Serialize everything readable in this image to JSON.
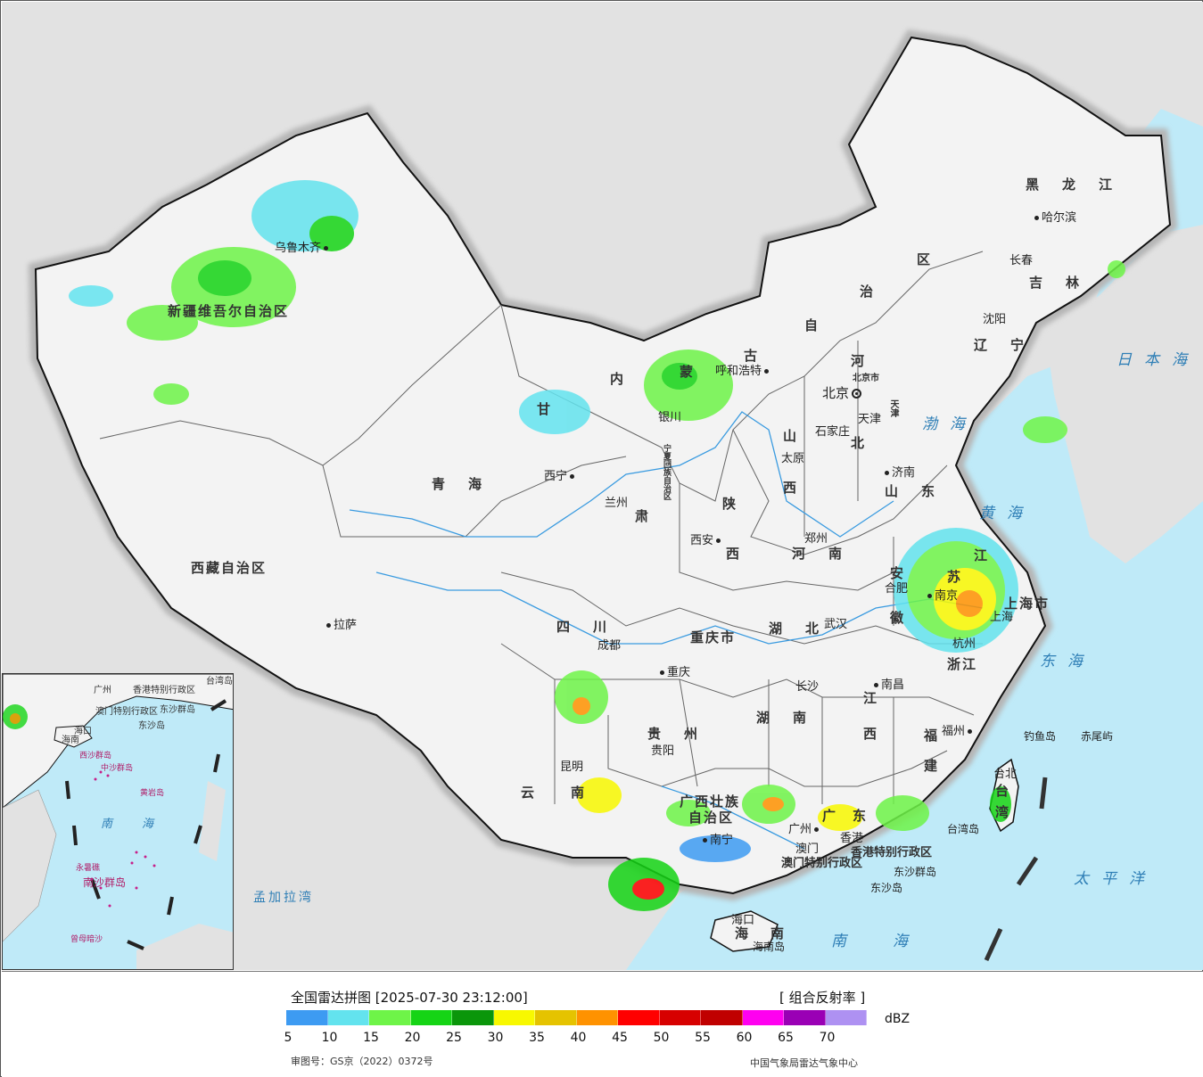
{
  "map": {
    "provinces": [
      {
        "name": "新疆维吾尔自治区",
        "cls": "province"
      },
      {
        "name": "西藏自治区",
        "cls": "province"
      },
      {
        "name": "青海",
        "cls": "province province-wide"
      },
      {
        "name": "甘",
        "cls": "province"
      },
      {
        "name": "肃",
        "cls": "province"
      },
      {
        "name": "内",
        "cls": "province"
      },
      {
        "name": "蒙",
        "cls": "province"
      },
      {
        "name": "古",
        "cls": "province"
      },
      {
        "name": "自",
        "cls": "province"
      },
      {
        "name": "治",
        "cls": "province"
      },
      {
        "name": "区",
        "cls": "province"
      },
      {
        "name": "黑龙江",
        "cls": "province province-wide"
      },
      {
        "name": "吉林",
        "cls": "province province-wide"
      },
      {
        "name": "辽宁",
        "cls": "province province-wide"
      },
      {
        "name": "河",
        "cls": "province"
      },
      {
        "name": "北",
        "cls": "province"
      },
      {
        "name": "山",
        "cls": "province"
      },
      {
        "name": "西",
        "cls": "province"
      },
      {
        "name": "山东",
        "cls": "province province-wide"
      },
      {
        "name": "陕",
        "cls": "province"
      },
      {
        "name": "西",
        "cls": "province"
      },
      {
        "name": "河南",
        "cls": "province province-wide"
      },
      {
        "name": "四川",
        "cls": "province province-wide"
      },
      {
        "name": "重庆市",
        "cls": "province"
      },
      {
        "name": "湖北",
        "cls": "province province-wide"
      },
      {
        "name": "安",
        "cls": "province"
      },
      {
        "name": "徽",
        "cls": "province"
      },
      {
        "name": "江",
        "cls": "province"
      },
      {
        "name": "苏",
        "cls": "province"
      },
      {
        "name": "上海市",
        "cls": "province"
      },
      {
        "name": "浙江",
        "cls": "province"
      },
      {
        "name": "湖南",
        "cls": "province province-wide"
      },
      {
        "name": "江",
        "cls": "province"
      },
      {
        "name": "西",
        "cls": "province"
      },
      {
        "name": "福",
        "cls": "province"
      },
      {
        "name": "建",
        "cls": "province"
      },
      {
        "name": "贵州",
        "cls": "province province-wide"
      },
      {
        "name": "云",
        "cls": "province"
      },
      {
        "name": "南",
        "cls": "province"
      },
      {
        "name": "广西壮族",
        "cls": "province"
      },
      {
        "name": "自治区",
        "cls": "province"
      },
      {
        "name": "广",
        "cls": "province"
      },
      {
        "name": "东",
        "cls": "province"
      },
      {
        "name": "海",
        "cls": "province"
      },
      {
        "name": "南",
        "cls": "province"
      },
      {
        "name": "台",
        "cls": "province"
      },
      {
        "name": "湾",
        "cls": "province"
      },
      {
        "name": "宁夏回族自治区",
        "cls": "province"
      },
      {
        "name": "天津",
        "cls": "province"
      },
      {
        "name": "北京市",
        "cls": "province"
      },
      {
        "name": "香港特别行政区",
        "cls": "province"
      },
      {
        "name": "澳门特别行政区",
        "cls": "province"
      }
    ],
    "cities": [
      {
        "name": "乌鲁木齐"
      },
      {
        "name": "拉萨"
      },
      {
        "name": "西宁"
      },
      {
        "name": "兰州"
      },
      {
        "name": "银川"
      },
      {
        "name": "呼和浩特"
      },
      {
        "name": "北京"
      },
      {
        "name": "天津"
      },
      {
        "name": "石家庄"
      },
      {
        "name": "太原"
      },
      {
        "name": "济南"
      },
      {
        "name": "郑州"
      },
      {
        "name": "西安"
      },
      {
        "name": "成都"
      },
      {
        "name": "重庆"
      },
      {
        "name": "武汉"
      },
      {
        "name": "合肥"
      },
      {
        "name": "南京"
      },
      {
        "name": "上海"
      },
      {
        "name": "杭州"
      },
      {
        "name": "长沙"
      },
      {
        "name": "南昌"
      },
      {
        "name": "福州"
      },
      {
        "name": "台北"
      },
      {
        "name": "贵阳"
      },
      {
        "name": "昆明"
      },
      {
        "name": "南宁"
      },
      {
        "name": "广州"
      },
      {
        "name": "香港"
      },
      {
        "name": "澳门"
      },
      {
        "name": "海口"
      },
      {
        "name": "沈阳"
      },
      {
        "name": "长春"
      },
      {
        "name": "哈尔滨"
      }
    ],
    "seas": [
      {
        "name": "日本海",
        "cls": "sea"
      },
      {
        "name": "渤海",
        "cls": "sea"
      },
      {
        "name": "黄海",
        "cls": "sea"
      },
      {
        "name": "东海",
        "cls": "sea"
      },
      {
        "name": "太平洋",
        "cls": "sea"
      },
      {
        "name": "南海",
        "cls": "sea"
      },
      {
        "name": "孟加拉湾",
        "cls": "sea-small"
      }
    ],
    "islands": [
      {
        "name": "钓鱼岛"
      },
      {
        "name": "赤尾屿"
      },
      {
        "name": "台湾岛"
      },
      {
        "name": "东沙群岛"
      },
      {
        "name": "东沙岛"
      },
      {
        "name": "海南岛"
      }
    ],
    "inset": {
      "labels": [
        "广州",
        "香港特别行政区",
        "澳门特别行政区",
        "东沙群岛",
        "东沙岛",
        "海南",
        "海口",
        "南",
        "海",
        "台湾岛"
      ],
      "islands": [
        "西沙群岛",
        "中沙群岛",
        "黄岩岛",
        "南沙群岛",
        "永暑礁",
        "曾母暗沙"
      ]
    }
  },
  "legend": {
    "title": "全国雷达拼图 [2025-07-30 23:12:00]",
    "product": "[ 组合反射率 ]",
    "unit": "dBZ",
    "swatches": [
      "#3d9bf2",
      "#63e3ee",
      "#6ef448",
      "#15d415",
      "#0a960a",
      "#f8f800",
      "#e5c300",
      "#ff9200",
      "#ff0000",
      "#d70000",
      "#c00000",
      "#ff00f0",
      "#9a00b5",
      "#ae91f2"
    ],
    "ticks": [
      "5",
      "10",
      "15",
      "20",
      "25",
      "30",
      "35",
      "40",
      "45",
      "50",
      "55",
      "60",
      "65",
      "70"
    ],
    "approval": "审图号：GS京（2022）0372号",
    "source": "中国气象局雷达气象中心"
  }
}
